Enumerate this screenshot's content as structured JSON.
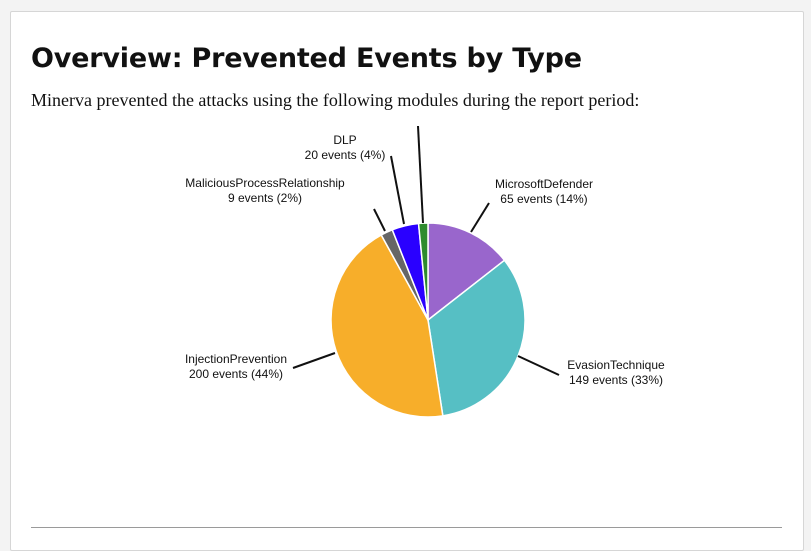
{
  "report": {
    "title": "Overview: Prevented Events by Type",
    "description": "Minerva prevented the attacks using the following modules during the report period:"
  },
  "chart_data": {
    "type": "pie",
    "start": "top",
    "direction": "clockwise",
    "slices": [
      {
        "name": "MicrosoftDefender",
        "value": 65,
        "percent": 14,
        "label_events": "65 events (14%)",
        "color": "#9966cc"
      },
      {
        "name": "EvasionTechnique",
        "value": 149,
        "percent": 33,
        "label_events": "149 events (33%)",
        "color": "#56bfc4"
      },
      {
        "name": "InjectionPrevention",
        "value": 200,
        "percent": 44,
        "label_events": "200 events (44%)",
        "color": "#f7ae2a"
      },
      {
        "name": "MaliciousProcessRelationship",
        "value": 9,
        "percent": 2,
        "label_events": "9 events (2%)",
        "color": "#666666"
      },
      {
        "name": "DLP",
        "value": 20,
        "percent": 4,
        "label_events": "20 events (4%)",
        "color": "#2a00ff"
      },
      {
        "name": "",
        "value": 7,
        "percent": 2,
        "label_events": "",
        "color": "#2e8b2e"
      }
    ]
  }
}
